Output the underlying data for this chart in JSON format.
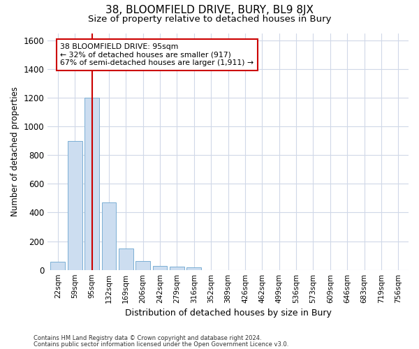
{
  "title": "38, BLOOMFIELD DRIVE, BURY, BL9 8JX",
  "subtitle": "Size of property relative to detached houses in Bury",
  "xlabel": "Distribution of detached houses by size in Bury",
  "ylabel": "Number of detached properties",
  "bar_color": "#ccddf0",
  "bar_edge_color": "#7bafd4",
  "categories": [
    "22sqm",
    "59sqm",
    "95sqm",
    "132sqm",
    "169sqm",
    "206sqm",
    "242sqm",
    "279sqm",
    "316sqm",
    "352sqm",
    "389sqm",
    "426sqm",
    "462sqm",
    "499sqm",
    "536sqm",
    "573sqm",
    "609sqm",
    "646sqm",
    "683sqm",
    "719sqm",
    "756sqm"
  ],
  "values": [
    55,
    900,
    1200,
    470,
    150,
    60,
    30,
    25,
    20,
    0,
    0,
    0,
    0,
    0,
    0,
    0,
    0,
    0,
    0,
    0,
    0
  ],
  "red_line_index": 2,
  "annotation_line1": "38 BLOOMFIELD DRIVE: 95sqm",
  "annotation_line2": "← 32% of detached houses are smaller (917)",
  "annotation_line3": "67% of semi-detached houses are larger (1,911) →",
  "ylim": [
    0,
    1650
  ],
  "yticks": [
    0,
    200,
    400,
    600,
    800,
    1000,
    1200,
    1400,
    1600
  ],
  "footnote1": "Contains HM Land Registry data © Crown copyright and database right 2024.",
  "footnote2": "Contains public sector information licensed under the Open Government Licence v3.0.",
  "background_color": "#ffffff",
  "plot_bg_color": "#ffffff",
  "grid_color": "#d0d8e8",
  "title_fontsize": 11,
  "subtitle_fontsize": 9.5,
  "bar_width": 0.85,
  "red_line_color": "#cc0000"
}
